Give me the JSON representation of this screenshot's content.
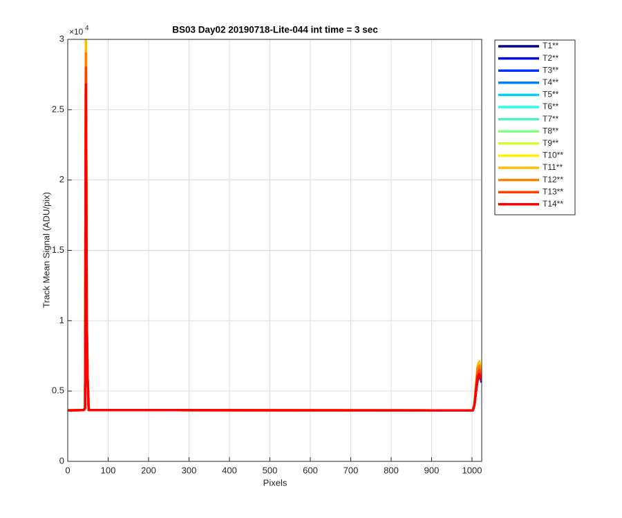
{
  "chart_data": {
    "type": "line",
    "title": "BS03 Day02 20190718-Lite-044 int time = 3 sec",
    "xlabel": "Pixels",
    "ylabel": "Track Mean Signal (ADU/pix)",
    "y_multiplier": "×10",
    "y_multiplier_exponent": "4",
    "x": [
      0,
      40,
      43,
      45,
      47,
      49,
      52,
      1002,
      1006,
      1010,
      1014,
      1018,
      1022,
      1024
    ],
    "xlim": [
      0,
      1024
    ],
    "xticks": [
      0,
      100,
      200,
      300,
      400,
      500,
      600,
      700,
      800,
      900,
      1000
    ],
    "ylim": [
      0,
      3
    ],
    "yticks": [
      0,
      0.5,
      1,
      1.5,
      2,
      2.5,
      3
    ],
    "grid": true,
    "legend": "outside-right",
    "series": [
      {
        "name": "T1**",
        "color": "#00008f",
        "values": [
          0.362,
          0.365,
          0.38,
          2.85,
          1.0,
          0.6,
          0.365,
          0.362,
          0.4,
          0.5,
          0.58,
          0.62,
          0.58,
          0.56
        ]
      },
      {
        "name": "T2**",
        "color": "#0000df",
        "values": [
          0.362,
          0.365,
          0.38,
          2.82,
          1.0,
          0.6,
          0.365,
          0.362,
          0.4,
          0.5,
          0.59,
          0.63,
          0.59,
          0.57
        ]
      },
      {
        "name": "T3**",
        "color": "#0030ff",
        "values": [
          0.362,
          0.365,
          0.38,
          2.8,
          1.0,
          0.6,
          0.365,
          0.362,
          0.4,
          0.5,
          0.6,
          0.64,
          0.6,
          0.57
        ]
      },
      {
        "name": "T4**",
        "color": "#0080ff",
        "values": [
          0.362,
          0.365,
          0.38,
          2.85,
          1.0,
          0.6,
          0.365,
          0.362,
          0.4,
          0.51,
          0.61,
          0.65,
          0.61,
          0.58
        ]
      },
      {
        "name": "T5**",
        "color": "#00cfff",
        "values": [
          0.362,
          0.365,
          0.38,
          2.9,
          1.0,
          0.6,
          0.365,
          0.362,
          0.4,
          0.52,
          0.62,
          0.66,
          0.62,
          0.58
        ]
      },
      {
        "name": "T6**",
        "color": "#20ffef",
        "values": [
          0.362,
          0.365,
          0.38,
          2.92,
          1.0,
          0.6,
          0.365,
          0.362,
          0.4,
          0.52,
          0.63,
          0.67,
          0.62,
          0.58
        ]
      },
      {
        "name": "T7**",
        "color": "#50efbf",
        "values": [
          0.362,
          0.365,
          0.38,
          2.95,
          1.0,
          0.6,
          0.365,
          0.362,
          0.4,
          0.53,
          0.64,
          0.68,
          0.63,
          0.59
        ]
      },
      {
        "name": "T8**",
        "color": "#80ff80",
        "values": [
          0.362,
          0.365,
          0.38,
          2.97,
          1.0,
          0.6,
          0.365,
          0.362,
          0.4,
          0.53,
          0.65,
          0.69,
          0.63,
          0.59
        ]
      },
      {
        "name": "T9**",
        "color": "#cfff30",
        "values": [
          0.362,
          0.365,
          0.38,
          3.0,
          1.0,
          0.6,
          0.365,
          0.362,
          0.4,
          0.54,
          0.66,
          0.7,
          0.64,
          0.59
        ]
      },
      {
        "name": "T10**",
        "color": "#ffef00",
        "values": [
          0.362,
          0.365,
          0.38,
          3.0,
          1.0,
          0.6,
          0.365,
          0.362,
          0.4,
          0.54,
          0.67,
          0.7,
          0.64,
          0.6
        ]
      },
      {
        "name": "T11**",
        "color": "#ffbf00",
        "values": [
          0.362,
          0.365,
          0.38,
          3.0,
          1.0,
          0.6,
          0.365,
          0.362,
          0.4,
          0.55,
          0.68,
          0.71,
          0.65,
          0.6
        ]
      },
      {
        "name": "T12**",
        "color": "#ff8000",
        "values": [
          0.362,
          0.365,
          0.38,
          2.9,
          1.0,
          0.6,
          0.365,
          0.362,
          0.4,
          0.54,
          0.66,
          0.68,
          0.63,
          0.59
        ]
      },
      {
        "name": "T13**",
        "color": "#ff4000",
        "values": [
          0.362,
          0.365,
          0.38,
          2.8,
          1.0,
          0.6,
          0.365,
          0.362,
          0.4,
          0.52,
          0.62,
          0.65,
          0.61,
          0.58
        ]
      },
      {
        "name": "T14**",
        "color": "#ff0000",
        "values": [
          0.362,
          0.365,
          0.38,
          2.68,
          1.0,
          0.6,
          0.365,
          0.362,
          0.4,
          0.5,
          0.6,
          0.62,
          0.59,
          0.57
        ]
      }
    ]
  }
}
